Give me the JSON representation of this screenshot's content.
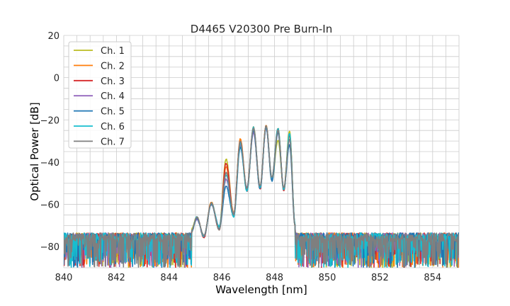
{
  "chart_data": {
    "type": "line",
    "title": "D4465 V20300 Pre Burn-In",
    "xlabel": "Wavelength [nm]",
    "ylabel": "Optical Power [dB]",
    "xlim": [
      840,
      855
    ],
    "ylim": [
      -90,
      20
    ],
    "xticks": [
      840,
      842,
      844,
      846,
      848,
      850,
      852,
      854
    ],
    "yticks": [
      20,
      0,
      -20,
      -40,
      -60,
      -80
    ],
    "xtick_labels": [
      "840",
      "842",
      "844",
      "846",
      "848",
      "850",
      "852",
      "854"
    ],
    "ytick_labels": [
      "20",
      "0",
      "−20",
      "−40",
      "−60",
      "−80"
    ],
    "grid": true,
    "minor_grid": {
      "x_step": 0.5,
      "y_step": 5
    },
    "legend_placement": "top-left",
    "signal_band": [
      844.85,
      848.8
    ],
    "noise_floor": {
      "upper": -73,
      "lower": -90
    },
    "peak_wavelengths": [
      845.05,
      845.6,
      846.16,
      846.7,
      847.2,
      847.68,
      848.13,
      848.57
    ],
    "dips": {
      "x": [
        844.85,
        845.32,
        845.9,
        846.45,
        846.95,
        847.45,
        847.9,
        848.35,
        848.78
      ],
      "y": [
        -72,
        -75,
        -71,
        -65,
        -53,
        -52,
        -48,
        -53,
        -70
      ]
    },
    "series": [
      {
        "name": "Ch. 1",
        "color": "#bcbd22",
        "peaks": [
          -66,
          -59.5,
          -38.5,
          -30,
          -25,
          -23,
          -29.5,
          -25.5
        ]
      },
      {
        "name": "Ch. 2",
        "color": "#ff7f0e",
        "peaks": [
          -66,
          -59,
          -42,
          -29,
          -23.5,
          -22.5,
          -24,
          -27
        ]
      },
      {
        "name": "Ch. 3",
        "color": "#d62728",
        "peaks": [
          -66.5,
          -59.5,
          -40.5,
          -30,
          -24,
          -23,
          -24.5,
          -27
        ]
      },
      {
        "name": "Ch. 4",
        "color": "#9467bd",
        "peaks": [
          -67,
          -60,
          -48,
          -32,
          -26,
          -24,
          -26,
          -29
        ]
      },
      {
        "name": "Ch. 5",
        "color": "#1f77b4",
        "peaks": [
          -66.5,
          -60,
          -51.5,
          -33,
          -25,
          -23.5,
          -26,
          -32
        ]
      },
      {
        "name": "Ch. 6",
        "color": "#17becf",
        "peaks": [
          -66,
          -59.5,
          -46,
          -31,
          -23.5,
          -23,
          -24,
          -26.5
        ]
      },
      {
        "name": "Ch. 7",
        "color": "#7f7f7f",
        "peaks": [
          -66,
          -59.5,
          -45,
          -30,
          -24,
          -23,
          -25,
          -29
        ]
      }
    ]
  }
}
